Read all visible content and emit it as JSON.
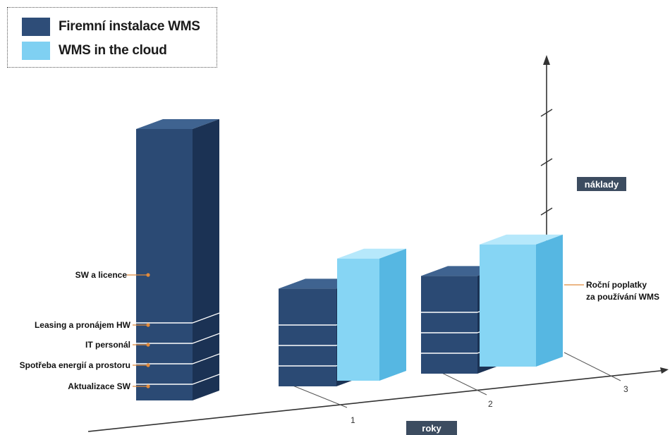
{
  "chart_data": {
    "type": "bar",
    "categories": [
      "",
      "1",
      "2",
      "3"
    ],
    "series": [
      {
        "name": "Firemní instalace WMS",
        "color": "#2e4d78",
        "values": [
          10,
          3.6,
          3.6,
          null
        ]
      },
      {
        "name": "WMS in the cloud",
        "color": "#7fd0f2",
        "values": [
          null,
          4.5,
          4.5,
          4.5
        ]
      }
    ],
    "cost_components": [
      "SW a licence",
      "Leasing a pronájem HW",
      "IT personál",
      "Spotřeba energií a prostoru",
      "Aktualizace SW"
    ],
    "cloud_annotation": [
      "Roční poplatky",
      "za používání WMS"
    ],
    "xlabel": "roky",
    "ylabel": "náklady",
    "legend_position": "top-left"
  },
  "colors": {
    "onprem_front": "#2b4a74",
    "onprem_top": "#3f6390",
    "onprem_side": "#1b3254",
    "cloud_front": "#86d5f4",
    "cloud_top": "#b6e8fb",
    "cloud_side": "#56b7e2",
    "leader": "#e08a3c",
    "axis_box": "#3c4c60"
  }
}
